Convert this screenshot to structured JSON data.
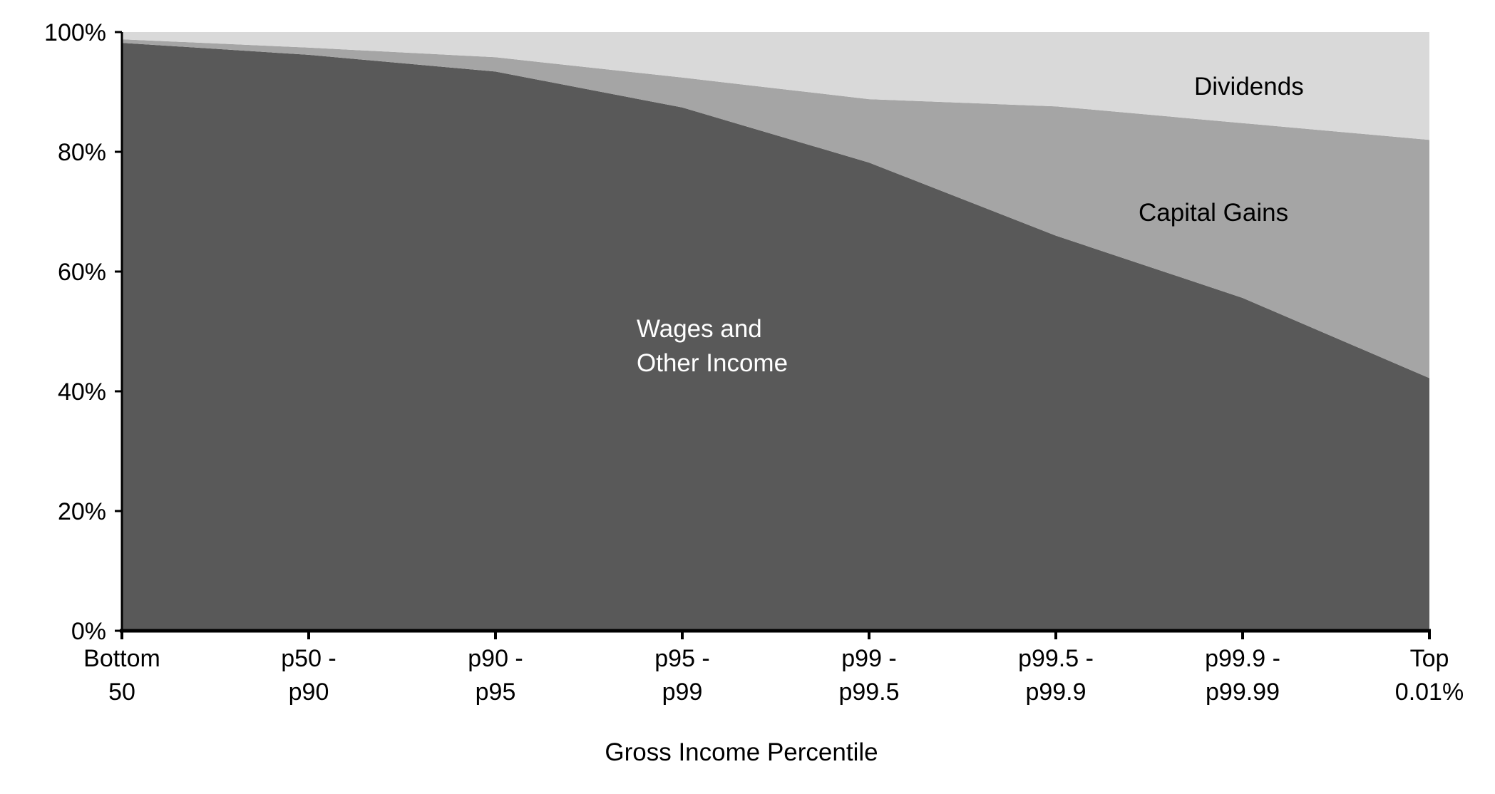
{
  "chart_data": {
    "type": "area",
    "stacked": true,
    "normalized": true,
    "title": "",
    "xlabel": "Gross Income Percentile",
    "ylabel": "",
    "ylim": [
      0,
      100
    ],
    "yticks": [
      "0%",
      "20%",
      "40%",
      "60%",
      "80%",
      "100%"
    ],
    "grid": false,
    "legend": "none",
    "categories": [
      [
        "Bottom",
        "50"
      ],
      [
        "p50 -",
        "p90"
      ],
      [
        "p90 -",
        "p95"
      ],
      [
        "p95 -",
        "p99"
      ],
      [
        "p99 -",
        "p99.5"
      ],
      [
        "p99.5 -",
        "p99.9"
      ],
      [
        "p99.9 -",
        "p99.99"
      ],
      [
        "Top",
        "0.01%"
      ]
    ],
    "series": [
      {
        "name": "Wages and Other Income",
        "label_lines": [
          "Wages and",
          "Other Income"
        ],
        "color": "#595959",
        "label_color": "#ffffff",
        "values": [
          98.2,
          96.2,
          93.4,
          87.4,
          78.2,
          66.0,
          55.6,
          42.2
        ]
      },
      {
        "name": "Capital Gains",
        "label_lines": [
          "Capital Gains"
        ],
        "color": "#a5a5a5",
        "label_color": "#000000",
        "values": [
          0.6,
          1.2,
          2.4,
          5.0,
          10.6,
          21.6,
          29.2,
          39.8
        ]
      },
      {
        "name": "Dividends",
        "label_lines": [
          "Dividends"
        ],
        "color": "#d9d9d9",
        "label_color": "#000000",
        "values": [
          1.2,
          2.6,
          4.2,
          7.6,
          11.2,
          12.4,
          15.2,
          18.0
        ]
      }
    ]
  }
}
